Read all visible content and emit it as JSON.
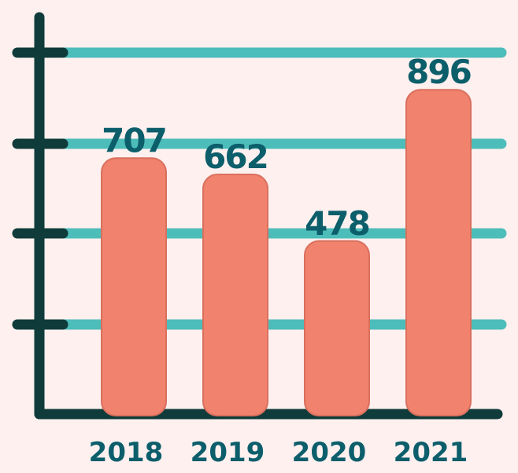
{
  "chart_data": {
    "type": "bar",
    "categories": [
      "2018",
      "2019",
      "2020",
      "2021"
    ],
    "values": [
      707,
      662,
      478,
      896
    ],
    "title": "",
    "xlabel": "",
    "ylabel": "",
    "ylim": [
      0,
      1000
    ],
    "grid": true,
    "legend": "none"
  },
  "colors": {
    "background": "#fdf0ef",
    "bar": "#f0826e",
    "bar_edge": "#d9705d",
    "gridline": "#4dbdba",
    "axis": "#0f3b3a",
    "value_label": "#0c5e6b",
    "tick_label": "#0c5e6b"
  }
}
